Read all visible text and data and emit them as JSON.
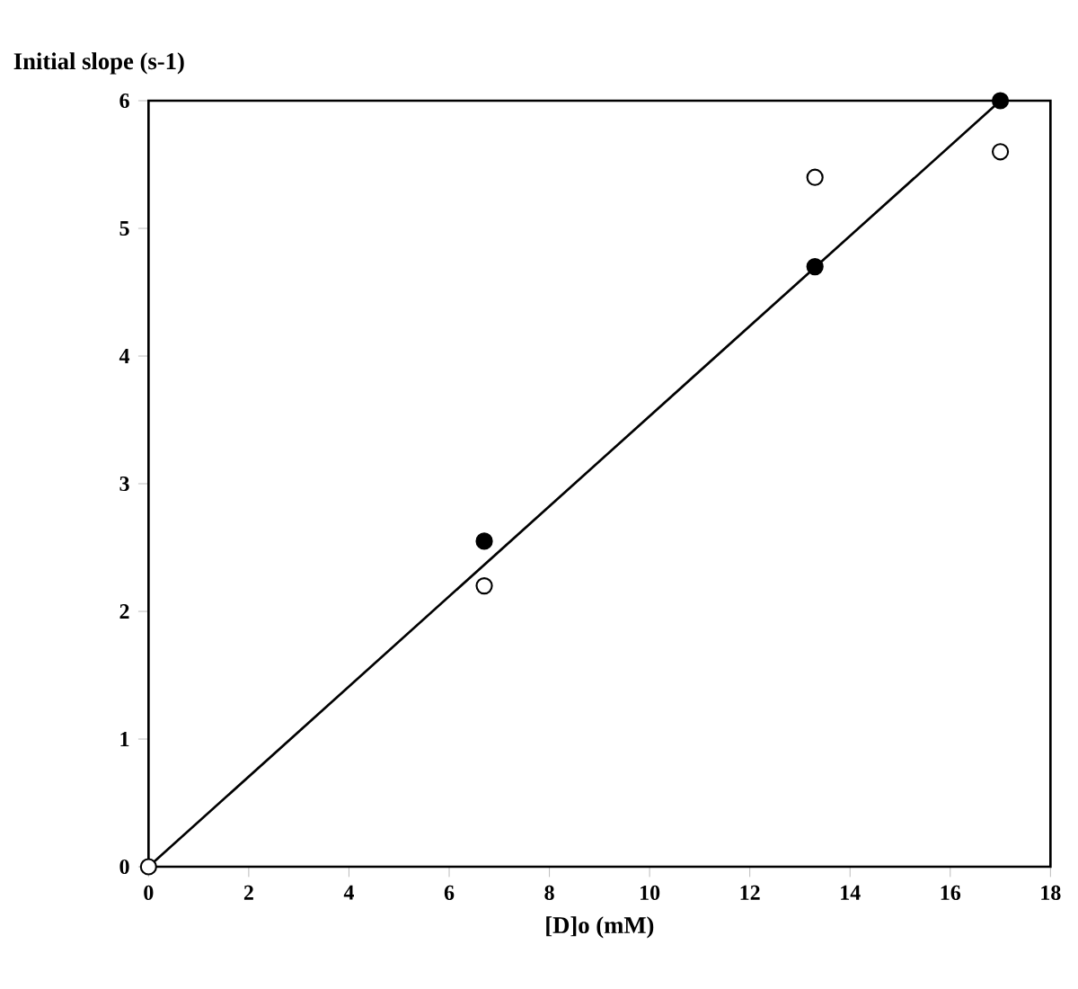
{
  "chart_data": {
    "type": "scatter",
    "ylabel": "Initial slope (s-1)",
    "xlabel": "[D]o  (mM)",
    "xlim": [
      0,
      18
    ],
    "ylim": [
      0,
      6
    ],
    "xticks": [
      0,
      2,
      4,
      6,
      8,
      10,
      12,
      14,
      16,
      18
    ],
    "yticks": [
      0,
      1,
      2,
      3,
      4,
      5,
      6
    ],
    "grid": false,
    "marker": "circle",
    "series": [
      {
        "color": "#000000",
        "x": [
          6.7,
          13.3,
          17.0
        ],
        "values": [
          2.55,
          4.7,
          6.0
        ]
      },
      {
        "color": "#ffffff",
        "x": [
          0,
          6.7,
          13.3,
          17.0
        ],
        "values": [
          0,
          2.2,
          5.4,
          5.6
        ]
      },
      {
        "type": "line",
        "color": "#000000",
        "marker": "none",
        "x": [
          0,
          17.0
        ],
        "values": [
          0,
          6.0
        ]
      }
    ]
  }
}
